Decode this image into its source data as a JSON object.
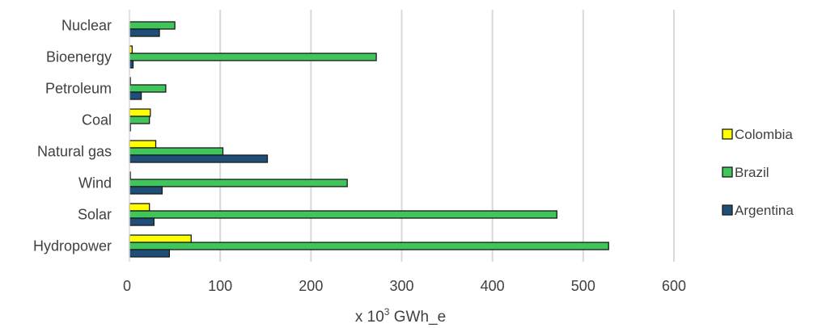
{
  "chart_data": {
    "type": "bar",
    "orientation": "horizontal",
    "categories": [
      "Hydropower",
      "Solar",
      "Wind",
      "Natural gas",
      "Coal",
      "Petroleum",
      "Bioenergy",
      "Nuclear"
    ],
    "series": [
      {
        "name": "Argentina",
        "color": "#1f4e79",
        "values": [
          44,
          27,
          36,
          152,
          1,
          13,
          4,
          33
        ]
      },
      {
        "name": "Brazil",
        "color": "#3fc55a",
        "values": [
          528,
          471,
          240,
          103,
          22,
          40,
          272,
          50
        ]
      },
      {
        "name": "Colombia",
        "color": "#ffff00",
        "values": [
          68,
          22,
          1,
          29,
          23,
          1,
          3,
          0
        ]
      }
    ],
    "xlabel": {
      "prefix": "x 10",
      "sup": "3",
      "suffix": " GWh_e"
    },
    "xlim": [
      0,
      600
    ],
    "xticks": [
      0,
      100,
      200,
      300,
      400,
      500,
      600
    ],
    "xtick_labels": [
      "0",
      "100",
      "200",
      "300",
      "400",
      "500",
      "600"
    ],
    "legend_position": "right",
    "legend_order": [
      "Colombia",
      "Brazil",
      "Argentina"
    ],
    "grid": "vertical"
  }
}
